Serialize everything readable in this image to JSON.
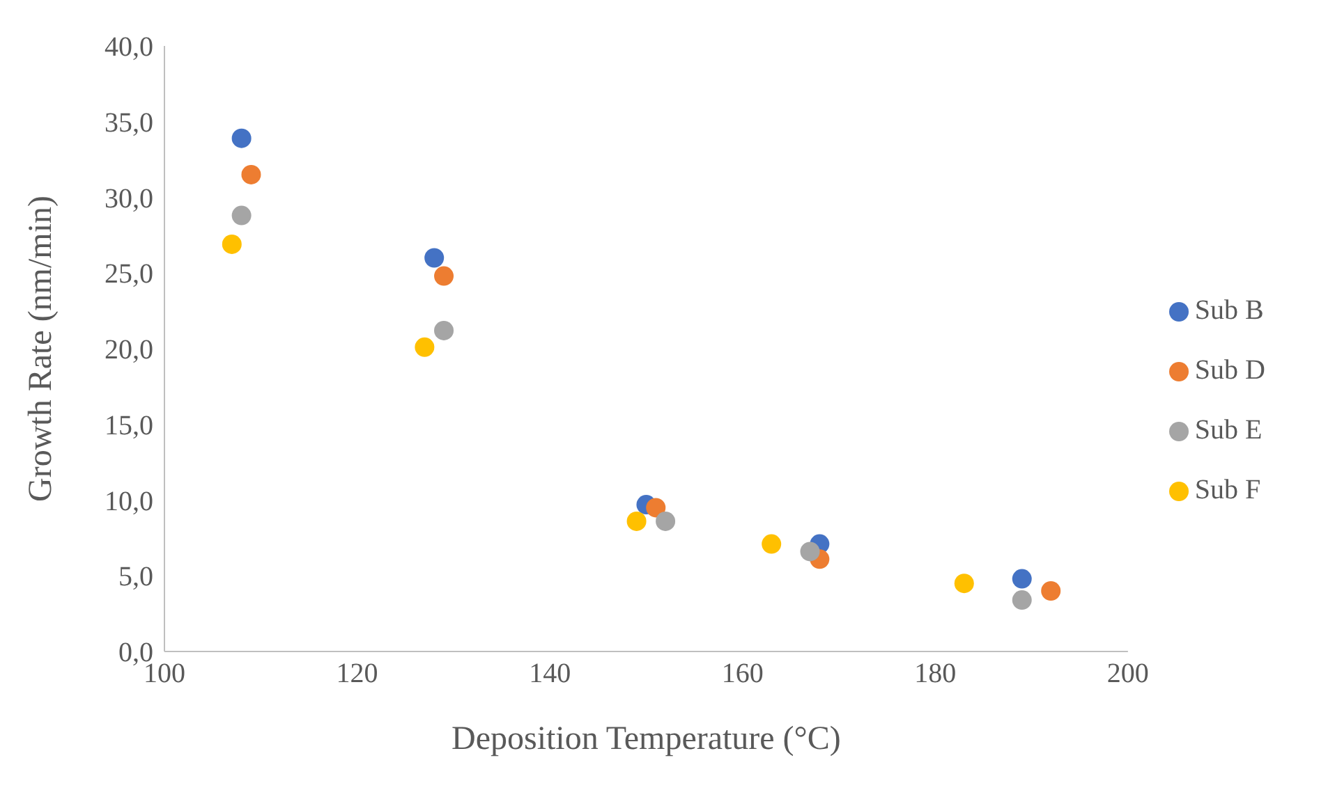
{
  "chart_data": {
    "type": "scatter",
    "xlabel": "Deposition Temperature (°C)",
    "ylabel": "Growth Rate (nm/min)",
    "xlim": [
      100,
      200
    ],
    "xticks": [
      100,
      120,
      140,
      160,
      180,
      200
    ],
    "ylim": [
      0,
      40
    ],
    "yticks": [
      {
        "value": 0,
        "label": "0,0"
      },
      {
        "value": 5,
        "label": "5,0"
      },
      {
        "value": 10,
        "label": "10,0"
      },
      {
        "value": 15,
        "label": "15,0"
      },
      {
        "value": 20,
        "label": "20,0"
      },
      {
        "value": 25,
        "label": "25,0"
      },
      {
        "value": 30,
        "label": "30,0"
      },
      {
        "value": 35,
        "label": "35,0"
      },
      {
        "value": 40,
        "label": "40,0"
      }
    ],
    "grid": false,
    "legend": "right",
    "marker": "circle",
    "series": [
      {
        "name": "Sub B",
        "color": "#4472c4",
        "x": [
          108,
          128,
          150,
          168,
          189
        ],
        "values": [
          33.9,
          26.0,
          9.7,
          7.1,
          4.8
        ]
      },
      {
        "name": "Sub D",
        "color": "#ed7d31",
        "x": [
          109,
          129,
          151,
          168,
          192
        ],
        "values": [
          31.5,
          24.8,
          9.5,
          6.1,
          4.0
        ]
      },
      {
        "name": "Sub E",
        "color": "#a5a5a5",
        "x": [
          108,
          129,
          152,
          167,
          189
        ],
        "values": [
          28.8,
          21.2,
          8.6,
          6.6,
          3.4
        ]
      },
      {
        "name": "Sub F",
        "color": "#ffc000",
        "x": [
          107,
          127,
          149,
          163,
          183
        ],
        "values": [
          26.9,
          20.1,
          8.6,
          7.1,
          4.5
        ]
      }
    ]
  }
}
